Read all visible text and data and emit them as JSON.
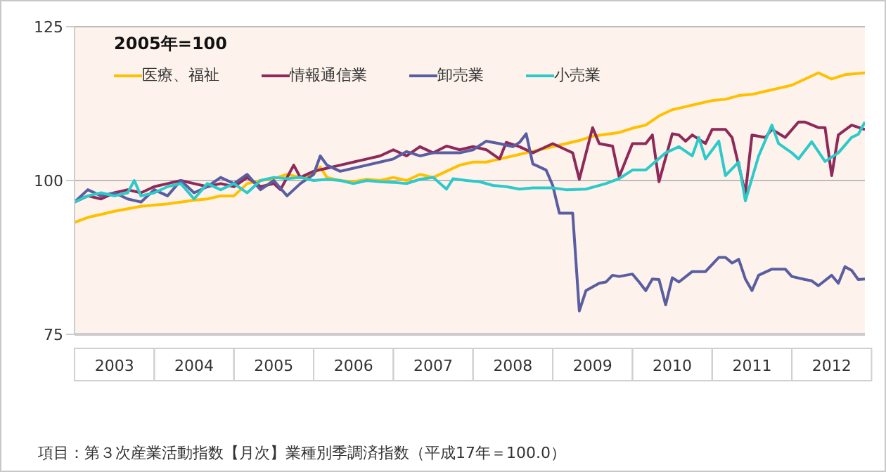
{
  "chart_data": {
    "type": "line",
    "legend_title": "2005年=100",
    "annotations": [
      "項目：第３次産業活動指数【月次】業種別季調済指数（平成17年＝100.0）"
    ],
    "xlim": [
      "2003-01",
      "2012-12"
    ],
    "xticks": [
      {
        "value": "2003-07",
        "label": "2003"
      },
      {
        "value": "2004-07",
        "label": "2004"
      },
      {
        "value": "2005-07",
        "label": "2005"
      },
      {
        "value": "2006-07",
        "label": "2006"
      },
      {
        "value": "2007-07",
        "label": "2007"
      },
      {
        "value": "2008-07",
        "label": "2008"
      },
      {
        "value": "2009-07",
        "label": "2009"
      },
      {
        "value": "2010-07",
        "label": "2010"
      },
      {
        "value": "2011-07",
        "label": "2011"
      },
      {
        "value": "2012-07",
        "label": "2012"
      }
    ],
    "ylim": [
      75,
      125
    ],
    "yticks": [
      75,
      100,
      125
    ],
    "grid": "y",
    "legend": "top left",
    "marker": "none",
    "line_style": "solid",
    "series": [
      {
        "name": "医療、福祉",
        "color": "#ffc000",
        "x": [
          "2003-01",
          "2003-03",
          "2003-05",
          "2003-07",
          "2003-09",
          "2003-11",
          "2004-01",
          "2004-03",
          "2004-05",
          "2004-07",
          "2004-09",
          "2004-11",
          "2005-01",
          "2005-03",
          "2005-05",
          "2005-07",
          "2005-09",
          "2005-11",
          "2006-01",
          "2006-02",
          "2006-03",
          "2006-05",
          "2006-07",
          "2006-09",
          "2006-11",
          "2007-01",
          "2007-03",
          "2007-05",
          "2007-07",
          "2007-09",
          "2007-11",
          "2008-01",
          "2008-03",
          "2008-05",
          "2008-07",
          "2008-09",
          "2008-11",
          "2009-01",
          "2009-03",
          "2009-05",
          "2009-07",
          "2009-09",
          "2009-11",
          "2010-01",
          "2010-03",
          "2010-05",
          "2010-07",
          "2010-09",
          "2010-11",
          "2011-01",
          "2011-03",
          "2011-05",
          "2011-07",
          "2011-09",
          "2011-11",
          "2012-01",
          "2012-03",
          "2012-05",
          "2012-07",
          "2012-09",
          "2012-12"
        ],
        "values": [
          93.2,
          94,
          94.5,
          95,
          95.4,
          95.8,
          96,
          96.2,
          96.5,
          96.8,
          97,
          97.5,
          97.5,
          99.5,
          100,
          100.3,
          101,
          100.5,
          101,
          102.2,
          100.5,
          100,
          99.8,
          100.2,
          100,
          100.5,
          100,
          101,
          100.5,
          101.5,
          102.5,
          103,
          103,
          103.5,
          104,
          104.5,
          105,
          105.5,
          106,
          106.5,
          107.2,
          107.5,
          107.8,
          108.5,
          109,
          110.5,
          111.5,
          112,
          112.5,
          113,
          113.2,
          113.8,
          114,
          114.5,
          115,
          115.5,
          116.5,
          117.5,
          116.5,
          117.2,
          117.5
        ]
      },
      {
        "name": "情報通信業",
        "color": "#8e2a5a",
        "x": [
          "2003-01",
          "2003-03",
          "2003-05",
          "2003-07",
          "2003-09",
          "2003-11",
          "2004-01",
          "2004-03",
          "2004-05",
          "2004-07",
          "2004-09",
          "2004-11",
          "2005-01",
          "2005-03",
          "2005-05",
          "2005-07",
          "2005-08",
          "2005-10",
          "2005-11",
          "2006-01",
          "2006-03",
          "2006-05",
          "2006-07",
          "2006-09",
          "2006-11",
          "2007-01",
          "2007-03",
          "2007-05",
          "2007-07",
          "2007-09",
          "2007-11",
          "2008-01",
          "2008-03",
          "2008-05",
          "2008-06",
          "2008-08",
          "2008-10",
          "2009-01",
          "2009-03",
          "2009-04",
          "2009-05",
          "2009-07",
          "2009-08",
          "2009-10",
          "2009-11",
          "2010-01",
          "2010-03",
          "2010-04",
          "2010-05",
          "2010-07",
          "2010-08",
          "2010-09",
          "2010-10",
          "2010-12",
          "2011-01",
          "2011-03",
          "2011-04",
          "2011-06",
          "2011-07",
          "2011-09",
          "2011-10",
          "2011-12",
          "2012-02",
          "2012-03",
          "2012-05",
          "2012-06",
          "2012-07",
          "2012-08",
          "2012-10",
          "2012-12"
        ],
        "values": [
          96.5,
          97.5,
          97,
          98,
          98.5,
          98,
          99,
          99.5,
          100,
          99.5,
          99,
          99.5,
          99,
          100.5,
          99,
          99.5,
          98.5,
          102.5,
          100.5,
          101.5,
          102,
          102.5,
          103,
          103.5,
          104,
          105,
          104,
          105.5,
          104.5,
          105.6,
          105,
          105.5,
          105,
          103.5,
          106.2,
          105.5,
          104.5,
          106,
          105,
          104.5,
          100.2,
          108.6,
          106,
          105.6,
          100.6,
          106,
          106,
          107.4,
          99.8,
          107.6,
          107.4,
          106.4,
          107.4,
          106,
          108.3,
          108.3,
          107,
          97.9,
          107.4,
          107,
          108.3,
          107,
          109.5,
          109.5,
          108.6,
          108.6,
          100.8,
          107.4,
          109,
          108.3
        ]
      },
      {
        "name": "卸売業",
        "color": "#5a5ea0",
        "x": [
          "2003-01",
          "2003-03",
          "2003-05",
          "2003-07",
          "2003-09",
          "2003-11",
          "2004-01",
          "2004-03",
          "2004-05",
          "2004-07",
          "2004-09",
          "2004-11",
          "2005-01",
          "2005-03",
          "2005-05",
          "2005-07",
          "2005-09",
          "2005-11",
          "2006-01",
          "2006-02",
          "2006-03",
          "2006-05",
          "2006-07",
          "2006-09",
          "2006-11",
          "2007-01",
          "2007-03",
          "2007-05",
          "2007-07",
          "2007-09",
          "2007-11",
          "2008-01",
          "2008-03",
          "2008-05",
          "2008-07",
          "2008-08",
          "2008-09",
          "2008-10",
          "2008-12",
          "2009-01",
          "2009-02",
          "2009-04",
          "2009-05",
          "2009-06",
          "2009-08",
          "2009-09",
          "2009-10",
          "2009-11",
          "2010-01",
          "2010-02",
          "2010-03",
          "2010-04",
          "2010-05",
          "2010-06",
          "2010-07",
          "2010-08",
          "2010-10",
          "2010-12",
          "2011-02",
          "2011-03",
          "2011-04",
          "2011-05",
          "2011-06",
          "2011-07",
          "2011-08",
          "2011-10",
          "2011-12",
          "2012-01",
          "2012-03",
          "2012-04",
          "2012-05",
          "2012-07",
          "2012-08",
          "2012-09",
          "2012-10",
          "2012-11",
          "2012-12"
        ],
        "values": [
          96.5,
          98.5,
          97.5,
          98,
          97,
          96.5,
          98.5,
          97.5,
          100,
          98,
          99,
          100.5,
          99.5,
          101,
          98.5,
          100,
          97.5,
          99.5,
          101,
          104,
          102.5,
          101.5,
          102,
          102.5,
          103,
          103.5,
          104.7,
          104,
          104.5,
          104.5,
          104.5,
          105,
          106.4,
          106,
          105.5,
          106.2,
          107.6,
          102.7,
          101.7,
          99.2,
          94.7,
          94.7,
          78.8,
          82.1,
          83.3,
          83.5,
          84.6,
          84.4,
          84.8,
          83.5,
          82.1,
          84,
          83.9,
          79.8,
          84.2,
          83.5,
          85.2,
          85.2,
          87.5,
          87.5,
          86.6,
          87.2,
          84,
          82.1,
          84.6,
          85.6,
          85.6,
          84.4,
          83.9,
          83.7,
          82.9,
          84.6,
          83.3,
          86,
          85.4,
          83.9,
          84
        ]
      },
      {
        "name": "小売業",
        "color": "#2ec9c9",
        "x": [
          "2003-01",
          "2003-03",
          "2003-05",
          "2003-07",
          "2003-09",
          "2003-10",
          "2003-11",
          "2004-01",
          "2004-03",
          "2004-05",
          "2004-07",
          "2004-09",
          "2004-11",
          "2005-01",
          "2005-03",
          "2005-05",
          "2005-07",
          "2005-09",
          "2005-11",
          "2006-01",
          "2006-03",
          "2006-05",
          "2006-07",
          "2006-09",
          "2006-11",
          "2007-01",
          "2007-03",
          "2007-05",
          "2007-07",
          "2007-09",
          "2007-10",
          "2007-12",
          "2008-02",
          "2008-04",
          "2008-06",
          "2008-08",
          "2008-10",
          "2009-01",
          "2009-03",
          "2009-06",
          "2009-09",
          "2009-11",
          "2010-01",
          "2010-03",
          "2010-06",
          "2010-08",
          "2010-10",
          "2010-11",
          "2010-12",
          "2011-02",
          "2011-03",
          "2011-05",
          "2011-06",
          "2011-08",
          "2011-10",
          "2011-11",
          "2012-01",
          "2012-02",
          "2012-04",
          "2012-06",
          "2012-08",
          "2012-10",
          "2012-11",
          "2012-12"
        ],
        "values": [
          96.5,
          97.5,
          98,
          97.5,
          98,
          100,
          97.5,
          98,
          99,
          99.5,
          97,
          99.5,
          98.5,
          99.5,
          98,
          100,
          100.5,
          100.3,
          100.5,
          100,
          100.2,
          100,
          99.5,
          100,
          99.8,
          99.7,
          99.5,
          100.2,
          100.5,
          98.6,
          100.3,
          100,
          99.8,
          99.2,
          99,
          98.6,
          98.8,
          98.8,
          98.5,
          98.6,
          99.5,
          100.3,
          101.7,
          101.7,
          104.5,
          105.5,
          104,
          107,
          103.5,
          106.4,
          100.8,
          103,
          96.7,
          104,
          109,
          106,
          104.5,
          103.5,
          106.3,
          103.1,
          104.5,
          107,
          107.5,
          109.5
        ]
      }
    ]
  }
}
